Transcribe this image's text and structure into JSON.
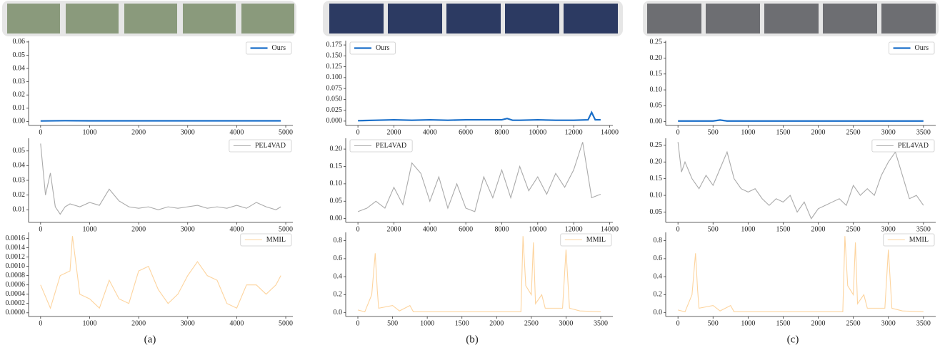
{
  "captions": [
    "(a)",
    "(b)",
    "(c)"
  ],
  "chart_data": [
    {
      "type": "line",
      "x": [
        0,
        500,
        1000,
        1500,
        2000,
        2500,
        3000,
        3500,
        4000,
        4500,
        4900
      ],
      "series": [
        {
          "name": "Ours",
          "color": "#1a6fc9",
          "values": [
            0.0004,
            0.0006,
            0.0005,
            0.0005,
            0.0005,
            0.0005,
            0.0005,
            0.0005,
            0.0005,
            0.0005,
            0.0005
          ]
        }
      ],
      "xlim": [
        -245,
        5145
      ],
      "xticks": [
        0,
        1000,
        2000,
        3000,
        4000,
        5000
      ],
      "ylim": [
        -0.003,
        0.061
      ],
      "yticks": [
        {
          "value": 0,
          "label": "0.00"
        },
        {
          "value": 0.01,
          "label": "0.01"
        },
        {
          "value": 0.02,
          "label": "0.02"
        },
        {
          "value": 0.03,
          "label": "0.03"
        },
        {
          "value": 0.04,
          "label": "0.04"
        },
        {
          "value": 0.05,
          "label": "0.05"
        },
        {
          "value": 0.06,
          "label": "0.06"
        }
      ],
      "legend": "upper right"
    },
    {
      "type": "line",
      "x": [
        0,
        100,
        200,
        300,
        400,
        500,
        600,
        800,
        1000,
        1200,
        1400,
        1600,
        1800,
        2000,
        2200,
        2400,
        2600,
        2800,
        3000,
        3200,
        3400,
        3600,
        3800,
        4000,
        4200,
        4400,
        4600,
        4800,
        4900
      ],
      "series": [
        {
          "name": "PEL4VAD",
          "color": "#aaaaaa",
          "values": [
            0.055,
            0.02,
            0.035,
            0.012,
            0.007,
            0.012,
            0.014,
            0.012,
            0.015,
            0.013,
            0.024,
            0.016,
            0.012,
            0.011,
            0.012,
            0.01,
            0.012,
            0.011,
            0.012,
            0.013,
            0.011,
            0.012,
            0.011,
            0.013,
            0.011,
            0.015,
            0.012,
            0.01,
            0.012
          ]
        }
      ],
      "xlim": [
        -245,
        5145
      ],
      "xticks": [
        0,
        1000,
        2000,
        3000,
        4000,
        5000
      ],
      "ylim": [
        0.0014,
        0.0586
      ],
      "yticks": [
        {
          "value": 0.01,
          "label": "0.01"
        },
        {
          "value": 0.02,
          "label": "0.02"
        },
        {
          "value": 0.03,
          "label": "0.03"
        },
        {
          "value": 0.04,
          "label": "0.04"
        },
        {
          "value": 0.05,
          "label": "0.05"
        }
      ],
      "legend": "upper right"
    },
    {
      "type": "line",
      "x": [
        0,
        200,
        400,
        600,
        650,
        800,
        1000,
        1200,
        1400,
        1600,
        1800,
        2000,
        2200,
        2400,
        2600,
        2800,
        3000,
        3200,
        3400,
        3600,
        3800,
        4000,
        4200,
        4400,
        4600,
        4800,
        4900
      ],
      "series": [
        {
          "name": "MMIL",
          "color": "#fdd49e",
          "values": [
            0.0006,
            0.0001,
            0.0008,
            0.0009,
            0.00165,
            0.0004,
            0.0003,
            0.0001,
            0.0007,
            0.0003,
            0.0002,
            0.0009,
            0.001,
            0.0005,
            0.0002,
            0.0004,
            0.0008,
            0.0011,
            0.0008,
            0.0007,
            0.0002,
            0.0001,
            0.0006,
            0.0006,
            0.0004,
            0.0006,
            0.0008
          ]
        }
      ],
      "xlim": [
        -245,
        5145
      ],
      "xticks": [
        0,
        1000,
        2000,
        3000,
        4000,
        5000
      ],
      "ylim": [
        -8e-05,
        0.00173
      ],
      "yticks": [
        {
          "value": 0,
          "label": "0.0000"
        },
        {
          "value": 0.0002,
          "label": "0.0002"
        },
        {
          "value": 0.0004,
          "label": "0.0004"
        },
        {
          "value": 0.0006,
          "label": "0.0006"
        },
        {
          "value": 0.0008,
          "label": "0.0008"
        },
        {
          "value": 0.001,
          "label": "0.0010"
        },
        {
          "value": 0.0012,
          "label": "0.0012"
        },
        {
          "value": 0.0014,
          "label": "0.0014"
        },
        {
          "value": 0.0016,
          "label": "0.0016"
        }
      ],
      "legend": "upper right"
    },
    {
      "type": "line",
      "x": [
        0,
        1000,
        2000,
        3000,
        4000,
        5000,
        6000,
        7000,
        8000,
        8300,
        8600,
        9000,
        10000,
        11000,
        12000,
        12800,
        13000,
        13200,
        13500
      ],
      "series": [
        {
          "name": "Ours",
          "color": "#1a6fc9",
          "values": [
            0.001,
            0.002,
            0.003,
            0.002,
            0.003,
            0.002,
            0.003,
            0.003,
            0.003,
            0.006,
            0.002,
            0.002,
            0.003,
            0.002,
            0.002,
            0.003,
            0.02,
            0.003,
            0.003
          ]
        }
      ],
      "xlim": [
        -680,
        14180
      ],
      "xticks": [
        0,
        2000,
        4000,
        6000,
        8000,
        10000,
        12000,
        14000
      ],
      "ylim": [
        -0.01,
        0.185
      ],
      "yticks": [
        {
          "value": 0,
          "label": "0.000"
        },
        {
          "value": 0.025,
          "label": "0.025"
        },
        {
          "value": 0.05,
          "label": "0.050"
        },
        {
          "value": 0.075,
          "label": "0.075"
        },
        {
          "value": 0.1,
          "label": "0.100"
        },
        {
          "value": 0.125,
          "label": "0.125"
        },
        {
          "value": 0.15,
          "label": "0.150"
        },
        {
          "value": 0.175,
          "label": "0.175"
        }
      ],
      "legend": "upper left"
    },
    {
      "type": "line",
      "x": [
        0,
        500,
        1000,
        1500,
        2000,
        2500,
        3000,
        3500,
        4000,
        4500,
        5000,
        5500,
        6000,
        6500,
        7000,
        7500,
        8000,
        8500,
        9000,
        9500,
        10000,
        10500,
        11000,
        11500,
        12000,
        12500,
        13000,
        13500
      ],
      "series": [
        {
          "name": "PEL4VAD",
          "color": "#aaaaaa",
          "values": [
            0.02,
            0.03,
            0.05,
            0.03,
            0.09,
            0.04,
            0.16,
            0.13,
            0.05,
            0.12,
            0.03,
            0.1,
            0.03,
            0.02,
            0.12,
            0.06,
            0.14,
            0.06,
            0.15,
            0.08,
            0.12,
            0.07,
            0.13,
            0.09,
            0.14,
            0.22,
            0.06,
            0.07
          ]
        }
      ],
      "xlim": [
        -680,
        14180
      ],
      "xticks": [
        0,
        2000,
        4000,
        6000,
        8000,
        10000,
        12000,
        14000
      ],
      "ylim": [
        -0.011,
        0.231
      ],
      "yticks": [
        {
          "value": 0,
          "label": "0.00"
        },
        {
          "value": 0.05,
          "label": "0.05"
        },
        {
          "value": 0.1,
          "label": "0.10"
        },
        {
          "value": 0.15,
          "label": "0.15"
        },
        {
          "value": 0.2,
          "label": "0.20"
        }
      ],
      "legend": "upper left"
    },
    {
      "type": "line",
      "x": [
        0,
        100,
        200,
        250,
        280,
        300,
        500,
        600,
        750,
        800,
        1000,
        1500,
        2000,
        2350,
        2380,
        2420,
        2500,
        2530,
        2560,
        2650,
        2700,
        2950,
        3000,
        3050,
        3200,
        3500
      ],
      "series": [
        {
          "name": "MMIL",
          "color": "#fdd49e",
          "values": [
            0.03,
            0.01,
            0.2,
            0.66,
            0.25,
            0.05,
            0.08,
            0.02,
            0.08,
            0.01,
            0.01,
            0.01,
            0.01,
            0.01,
            0.85,
            0.3,
            0.2,
            0.78,
            0.1,
            0.2,
            0.05,
            0.05,
            0.7,
            0.05,
            0.02,
            0.01
          ]
        }
      ],
      "xlim": [
        -175,
        3675
      ],
      "xticks": [
        0,
        500,
        1000,
        1500,
        2000,
        2500,
        3000,
        3500
      ],
      "ylim": [
        -0.042,
        0.892
      ],
      "yticks": [
        {
          "value": 0,
          "label": "0.0"
        },
        {
          "value": 0.2,
          "label": "0.2"
        },
        {
          "value": 0.4,
          "label": "0.4"
        },
        {
          "value": 0.6,
          "label": "0.6"
        },
        {
          "value": 0.8,
          "label": "0.8"
        }
      ],
      "legend": "upper right"
    },
    {
      "type": "line",
      "x": [
        0,
        500,
        600,
        700,
        1000,
        1500,
        2000,
        2500,
        3000,
        3500
      ],
      "series": [
        {
          "name": "Ours",
          "color": "#1a6fc9",
          "values": [
            0.002,
            0.002,
            0.005,
            0.002,
            0.002,
            0.002,
            0.002,
            0.002,
            0.002,
            0.002
          ]
        }
      ],
      "xlim": [
        -175,
        3675
      ],
      "xticks": [
        0,
        500,
        1000,
        1500,
        2000,
        2500,
        3000,
        3500
      ],
      "ylim": [
        -0.012,
        0.255
      ],
      "yticks": [
        {
          "value": 0,
          "label": "0.00"
        },
        {
          "value": 0.05,
          "label": "0.05"
        },
        {
          "value": 0.1,
          "label": "0.10"
        },
        {
          "value": 0.15,
          "label": "0.15"
        },
        {
          "value": 0.2,
          "label": "0.20"
        },
        {
          "value": 0.25,
          "label": "0.25"
        }
      ],
      "legend": "upper right"
    },
    {
      "type": "line",
      "x": [
        0,
        50,
        100,
        200,
        300,
        400,
        500,
        600,
        700,
        800,
        900,
        1000,
        1100,
        1200,
        1300,
        1400,
        1500,
        1600,
        1700,
        1800,
        1900,
        2000,
        2100,
        2200,
        2300,
        2400,
        2500,
        2600,
        2700,
        2800,
        2900,
        3000,
        3100,
        3200,
        3300,
        3400,
        3500
      ],
      "series": [
        {
          "name": "PEL4VAD",
          "color": "#aaaaaa",
          "values": [
            0.26,
            0.17,
            0.2,
            0.15,
            0.12,
            0.16,
            0.13,
            0.18,
            0.23,
            0.15,
            0.12,
            0.11,
            0.12,
            0.09,
            0.07,
            0.09,
            0.08,
            0.1,
            0.05,
            0.08,
            0.03,
            0.06,
            0.07,
            0.08,
            0.09,
            0.07,
            0.13,
            0.1,
            0.12,
            0.1,
            0.16,
            0.2,
            0.23,
            0.16,
            0.09,
            0.1,
            0.07
          ]
        }
      ],
      "xlim": [
        -175,
        3675
      ],
      "xticks": [
        0,
        500,
        1000,
        1500,
        2000,
        2500,
        3000,
        3500
      ],
      "ylim": [
        0.019,
        0.271
      ],
      "yticks": [
        {
          "value": 0.05,
          "label": "0.05"
        },
        {
          "value": 0.1,
          "label": "0.10"
        },
        {
          "value": 0.15,
          "label": "0.15"
        },
        {
          "value": 0.2,
          "label": "0.20"
        },
        {
          "value": 0.25,
          "label": "0.25"
        }
      ],
      "legend": "upper right"
    },
    {
      "type": "line",
      "x": [
        0,
        100,
        200,
        250,
        280,
        300,
        500,
        600,
        750,
        800,
        1000,
        1500,
        2000,
        2350,
        2380,
        2420,
        2500,
        2530,
        2560,
        2650,
        2700,
        2950,
        3000,
        3050,
        3200,
        3500
      ],
      "series": [
        {
          "name": "MMIL",
          "color": "#fdd49e",
          "values": [
            0.03,
            0.01,
            0.2,
            0.66,
            0.25,
            0.05,
            0.08,
            0.02,
            0.08,
            0.01,
            0.01,
            0.01,
            0.01,
            0.01,
            0.85,
            0.3,
            0.2,
            0.78,
            0.1,
            0.2,
            0.05,
            0.05,
            0.7,
            0.05,
            0.02,
            0.01
          ]
        }
      ],
      "xlim": [
        -175,
        3675
      ],
      "xticks": [
        0,
        500,
        1000,
        1500,
        2000,
        2500,
        3000,
        3500
      ],
      "ylim": [
        -0.042,
        0.892
      ],
      "yticks": [
        {
          "value": 0,
          "label": "0.0"
        },
        {
          "value": 0.2,
          "label": "0.2"
        },
        {
          "value": 0.4,
          "label": "0.4"
        },
        {
          "value": 0.6,
          "label": "0.6"
        },
        {
          "value": 0.8,
          "label": "0.8"
        }
      ],
      "legend": "upper right"
    }
  ]
}
